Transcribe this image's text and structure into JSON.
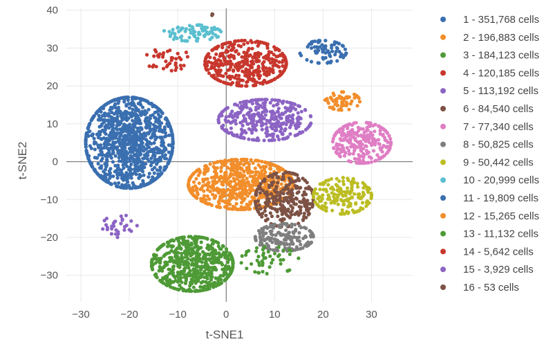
{
  "chart_data": {
    "type": "scatter",
    "title": "",
    "xlabel": "t-SNE1",
    "ylabel": "t-SNE2",
    "xlim": [
      -33,
      38.5
    ],
    "ylim": [
      -37,
      40.5
    ],
    "xticks": [
      "−30",
      "−20",
      "−10",
      "0",
      "10",
      "20",
      "30"
    ],
    "yticks": [
      "−30",
      "−20",
      "−10",
      "0",
      "10",
      "20",
      "30",
      "40"
    ],
    "grid": true,
    "zero_lines": true,
    "legend_position": "right",
    "series": [
      {
        "name": "1 - 351,768 cells",
        "color": "#3a6fb0",
        "centroid": [
          -20,
          5
        ],
        "spread": [
          7.5,
          10
        ],
        "count": 1100
      },
      {
        "name": "2 - 196,883 cells",
        "color": "#f28e2b",
        "centroid": [
          3,
          -6
        ],
        "spread": [
          9,
          5.5
        ],
        "count": 650
      },
      {
        "name": "3 - 184,123 cells",
        "color": "#4e9a36",
        "centroid": [
          -7,
          -27
        ],
        "spread": [
          7,
          6
        ],
        "count": 620
      },
      {
        "name": "4 - 120,185 cells",
        "color": "#c8372d",
        "centroid": [
          4,
          26
        ],
        "spread": [
          7,
          5
        ],
        "count": 400
      },
      {
        "name": "5 - 113,192 cells",
        "color": "#8c64c4",
        "centroid": [
          8,
          11
        ],
        "spread": [
          8,
          4.5
        ],
        "count": 380
      },
      {
        "name": "6 - 84,540 cells",
        "color": "#7d5245",
        "centroid": [
          12,
          -10
        ],
        "spread": [
          5,
          6
        ],
        "count": 280
      },
      {
        "name": "7 - 77,340 cells",
        "color": "#df7ec4",
        "centroid": [
          28,
          5
        ],
        "spread": [
          5,
          4.5
        ],
        "count": 260
      },
      {
        "name": "8 - 50,825 cells",
        "color": "#7f7f7f",
        "centroid": [
          12,
          -20
        ],
        "spread": [
          5,
          3
        ],
        "count": 170
      },
      {
        "name": "9 - 50,442 cells",
        "color": "#bcbd22",
        "centroid": [
          24,
          -9
        ],
        "spread": [
          5,
          4
        ],
        "count": 170
      },
      {
        "name": "10 - 20,999 cells",
        "color": "#5bbfcf",
        "centroid": [
          -7,
          34
        ],
        "spread": [
          5,
          1.8
        ],
        "count": 80
      },
      {
        "name": "11 - 19,809 cells",
        "color": "#3a6fb0",
        "centroid": [
          20,
          29
        ],
        "spread": [
          4,
          2.5
        ],
        "count": 75
      },
      {
        "name": "12 - 15,265 cells",
        "color": "#f28e2b",
        "centroid": [
          24,
          16
        ],
        "spread": [
          3,
          2
        ],
        "count": 60
      },
      {
        "name": "13 - 11,132 cells",
        "color": "#4e9a36",
        "centroid": [
          9,
          -26
        ],
        "spread": [
          5,
          3
        ],
        "count": 50
      },
      {
        "name": "14 - 5,642 cells",
        "color": "#c8372d",
        "centroid": [
          -12,
          27
        ],
        "spread": [
          4,
          2.5
        ],
        "count": 40
      },
      {
        "name": "15 - 3,929 cells",
        "color": "#8c64c4",
        "centroid": [
          -22,
          -17
        ],
        "spread": [
          3,
          2.5
        ],
        "count": 30
      },
      {
        "name": "16 - 53 cells",
        "color": "#7d5245",
        "centroid": [
          -3,
          39
        ],
        "spread": [
          0.3,
          0.3
        ],
        "count": 3
      }
    ]
  }
}
